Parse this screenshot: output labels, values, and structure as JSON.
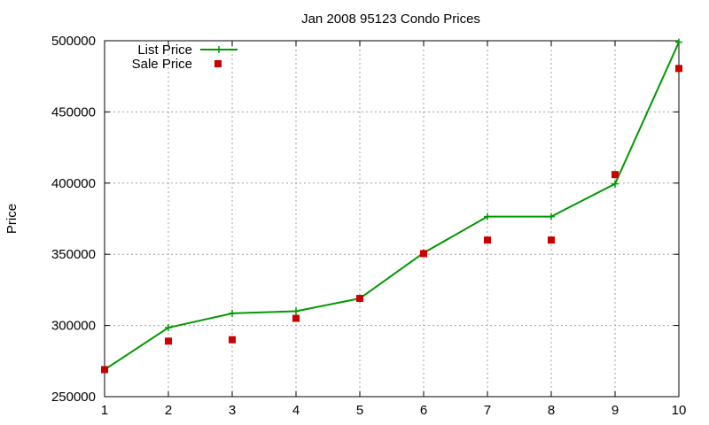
{
  "chart_data": {
    "type": "line",
    "title": "Jan 2008 95123 Condo Prices",
    "xlabel": "",
    "ylabel": "Price",
    "xlim": [
      1,
      10
    ],
    "ylim": [
      250000,
      500000
    ],
    "x_ticks": [
      "1",
      "2",
      "3",
      "4",
      "5",
      "6",
      "7",
      "8",
      "9",
      "10"
    ],
    "y_ticks": [
      "250000",
      "300000",
      "350000",
      "400000",
      "450000",
      "500000"
    ],
    "grid": true,
    "legend_position": "top-left",
    "series": [
      {
        "name": "List Price",
        "style": "line+cross",
        "color": "#009900",
        "x": [
          1,
          2,
          3,
          4,
          5,
          6,
          7,
          8,
          9,
          10
        ],
        "values": [
          269000,
          298500,
          308500,
          310000,
          319000,
          351000,
          376500,
          376500,
          399500,
          499000
        ]
      },
      {
        "name": "Sale Price",
        "style": "square",
        "color": "#cc0000",
        "x": [
          1,
          2,
          3,
          4,
          5,
          6,
          7,
          8,
          9,
          10
        ],
        "values": [
          269000,
          289000,
          290000,
          305000,
          319000,
          350500,
          360000,
          360000,
          406000,
          480500
        ]
      }
    ]
  }
}
